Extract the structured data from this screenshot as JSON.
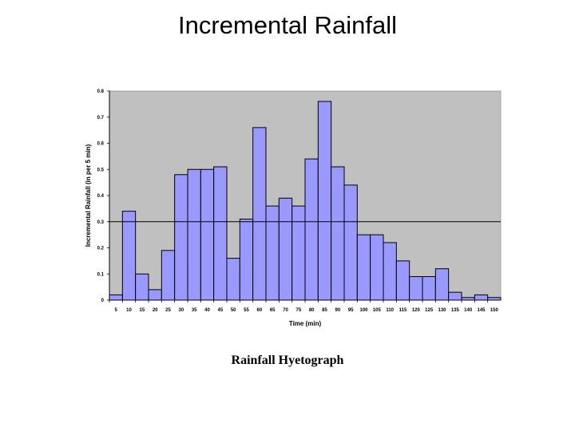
{
  "slide": {
    "title": "Incremental Rainfall",
    "caption": "Rainfall Hyetograph"
  },
  "chart_data": {
    "type": "bar",
    "xlabel": "Time (min)",
    "ylabel": "Incremental Rainfall (in per 5 min)",
    "ylim": [
      0,
      0.8
    ],
    "yticks": [
      "0",
      "0.1",
      "0.2",
      "0.3",
      "0.4",
      "0.5",
      "0.6",
      "0.7",
      "0.8"
    ],
    "categories": [
      "5",
      "10",
      "15",
      "20",
      "25",
      "30",
      "35",
      "40",
      "45",
      "50",
      "55",
      "60",
      "65",
      "70",
      "75",
      "80",
      "85",
      "90",
      "95",
      "100",
      "105",
      "110",
      "115",
      "120",
      "125",
      "130",
      "135",
      "140",
      "145",
      "150"
    ],
    "values": [
      0.02,
      0.34,
      0.1,
      0.04,
      0.19,
      0.48,
      0.5,
      0.5,
      0.51,
      0.16,
      0.31,
      0.66,
      0.36,
      0.39,
      0.36,
      0.54,
      0.76,
      0.51,
      0.44,
      0.25,
      0.25,
      0.22,
      0.15,
      0.09,
      0.09,
      0.12,
      0.03,
      0.01,
      0.02,
      0.01
    ],
    "reference_line": 0.3,
    "grid": false,
    "legend": "none",
    "colors": {
      "plot_background": "#c0c0c0",
      "bar_fill": "#9999ff",
      "bar_stroke": "#000000"
    }
  }
}
